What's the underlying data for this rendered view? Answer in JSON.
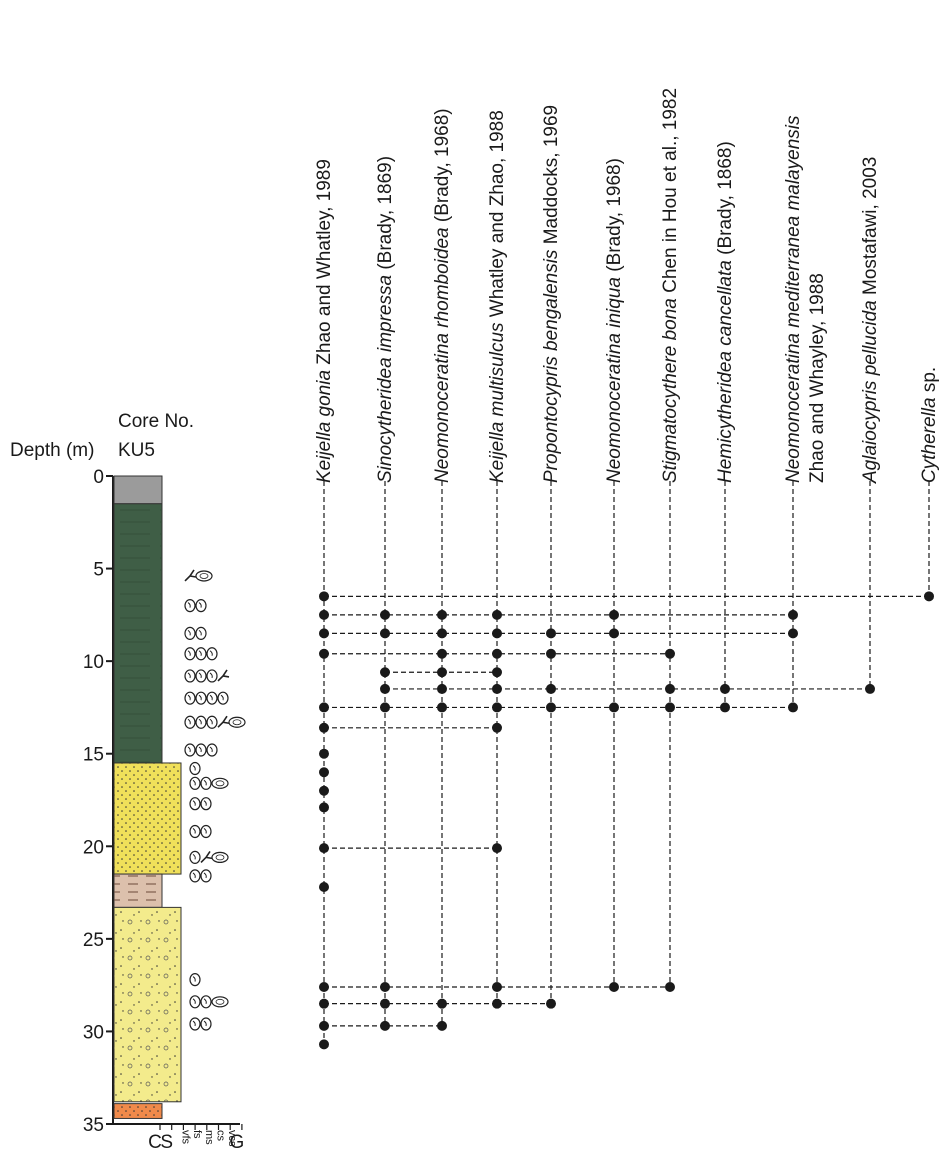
{
  "chart_data": {
    "type": "range",
    "axis_title": "Depth (m)",
    "core_label": "Core No.",
    "core": "KU5",
    "ylim": [
      0,
      35
    ],
    "yticks": [
      0,
      5,
      10,
      15,
      20,
      25,
      30,
      35
    ],
    "grain_sizes": [
      "C",
      "S",
      "vfs",
      "fs",
      "ms",
      "cs",
      "vcs",
      "G"
    ],
    "lithology": [
      {
        "top": 0,
        "bottom": 1.5,
        "color": "#9b9b9b",
        "grain": "S"
      },
      {
        "top": 1.5,
        "bottom": 15.5,
        "color": "#3f5e46",
        "grain": "S"
      },
      {
        "top": 15.5,
        "bottom": 21.5,
        "color": "#f0e05a",
        "grain": "vfs"
      },
      {
        "top": 21.5,
        "bottom": 23.3,
        "color": "#dcc0ac",
        "grain": "S"
      },
      {
        "top": 23.3,
        "bottom": 33.8,
        "color": "#f3eb8c",
        "grain": "vfs"
      },
      {
        "top": 33.9,
        "bottom": 34.7,
        "color": "#f08a4b",
        "grain": "S"
      }
    ],
    "marker_color": "#1a1a1a",
    "species": [
      {
        "name": "Keijella gonia",
        "author": "Zhao and Whatley, 1989",
        "depths": [
          6.5,
          7.5,
          8.5,
          9.6,
          12.5,
          13.6,
          15.0,
          16.0,
          17.0,
          17.9,
          20.1,
          22.2,
          27.6,
          28.5,
          29.7,
          30.7
        ]
      },
      {
        "name": "Sinocytheridea impressa",
        "author": "(Brady, 1869)",
        "depths": [
          7.5,
          8.5,
          10.6,
          11.5,
          12.5,
          27.6,
          28.5,
          29.7
        ]
      },
      {
        "name": "Neomonoceratina rhomboidea",
        "author": "(Brady, 1968)",
        "depths": [
          7.5,
          8.5,
          9.6,
          10.6,
          11.5,
          12.5,
          28.5,
          29.7
        ]
      },
      {
        "name": "Keijella multisulcus",
        "author": "Whatley and Zhao, 1988",
        "depths": [
          7.5,
          8.5,
          9.6,
          10.6,
          11.5,
          12.5,
          13.6,
          20.1,
          27.6,
          28.5
        ]
      },
      {
        "name": "Propontocypris bengalensis",
        "author": "Maddocks, 1969",
        "depths": [
          8.5,
          9.6,
          11.5,
          12.5,
          28.5
        ]
      },
      {
        "name": "Neomonoceratina iniqua",
        "author": "(Brady, 1968)",
        "depths": [
          7.5,
          8.5,
          12.5,
          27.6
        ]
      },
      {
        "name": "Stigmatocythere bona",
        "author": "Chen in Hou et al., 1982",
        "depths": [
          9.6,
          11.5,
          12.5,
          27.6
        ]
      },
      {
        "name": "Hemicytheridea cancellata",
        "author": "(Brady, 1868)",
        "depths": [
          11.5,
          12.5
        ]
      },
      {
        "name": "Neomonoceratina mediterranea malayensis",
        "author": "Zhao and Whayley, 1988",
        "depths": [
          7.5,
          8.5,
          12.5
        ]
      },
      {
        "name": "Aglaiocypris pellucida",
        "author": "Mostafawi, 2003",
        "depths": [
          11.5
        ]
      },
      {
        "name": "Cytherella",
        "author": "sp.",
        "depths": [
          6.5
        ]
      }
    ]
  }
}
